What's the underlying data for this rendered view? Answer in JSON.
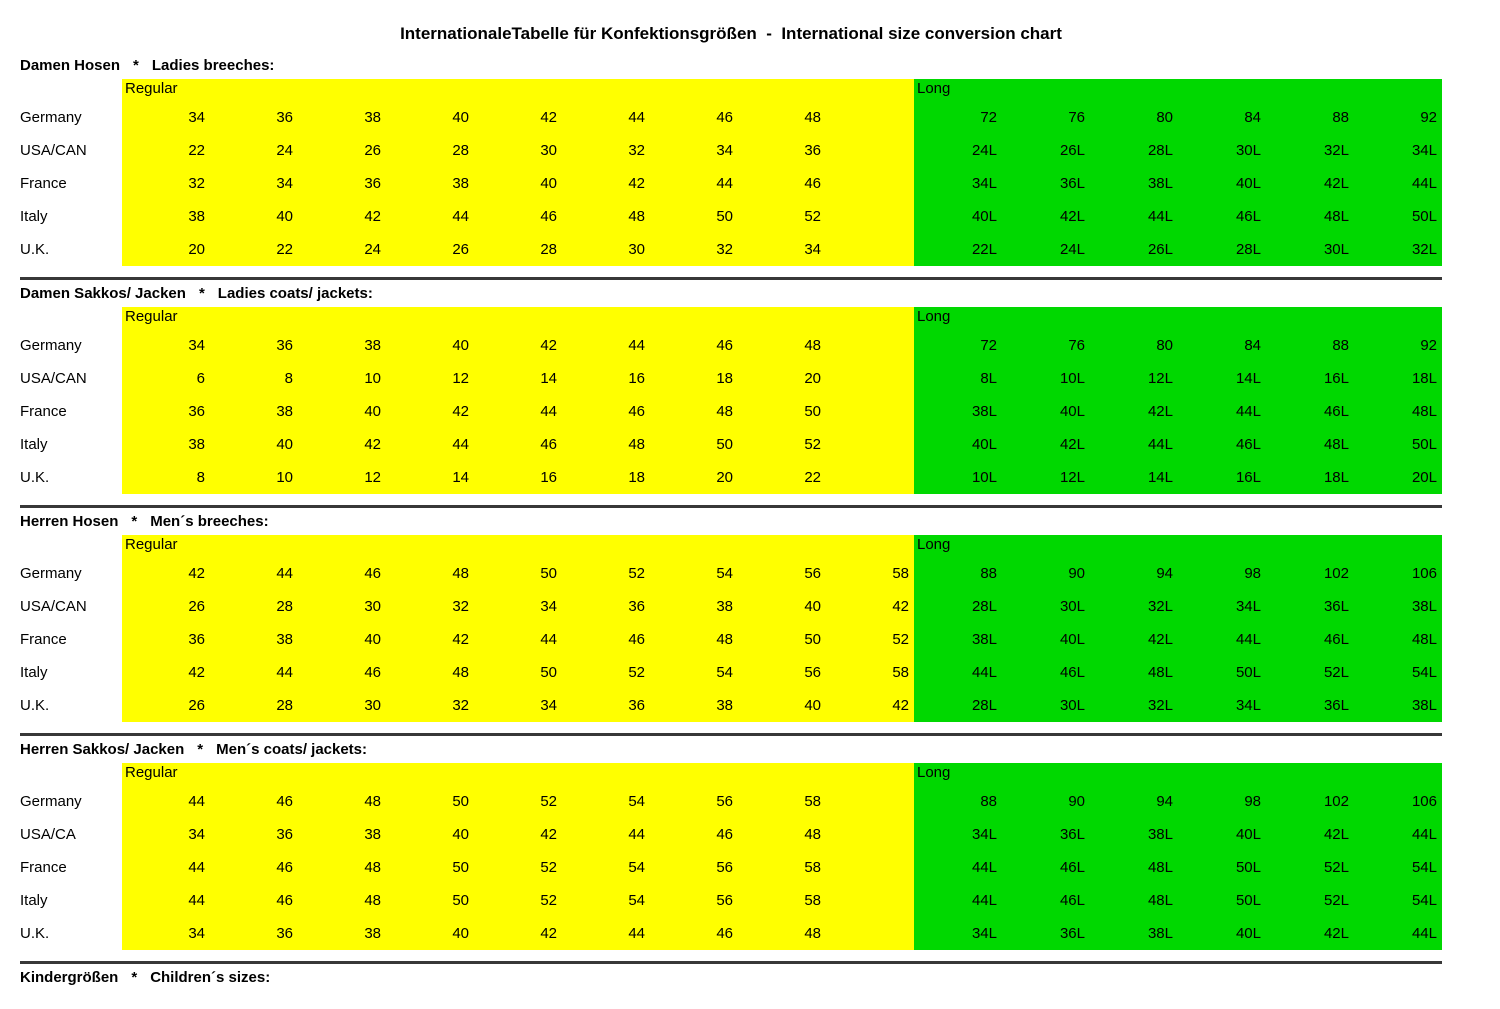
{
  "title": "InternationaleTabelle für Konfektionsgrößen  -  International size conversion chart",
  "regular_label": "Regular",
  "long_label": "Long",
  "heading_separator": "*",
  "colors": {
    "regular_bg": "#ffff00",
    "long_bg": "#00d800",
    "divider": "#383838"
  },
  "sections": [
    {
      "heading_de": "Damen Hosen",
      "heading_en": "Ladies breeches:",
      "rows": [
        {
          "label": "Germany",
          "regular": [
            "34",
            "36",
            "38",
            "40",
            "42",
            "44",
            "46",
            "48"
          ],
          "long": [
            "72",
            "76",
            "80",
            "84",
            "88",
            "92"
          ]
        },
        {
          "label": "USA/CAN",
          "regular": [
            "22",
            "24",
            "26",
            "28",
            "30",
            "32",
            "34",
            "36"
          ],
          "long": [
            "24L",
            "26L",
            "28L",
            "30L",
            "32L",
            "34L"
          ]
        },
        {
          "label": "France",
          "regular": [
            "32",
            "34",
            "36",
            "38",
            "40",
            "42",
            "44",
            "46"
          ],
          "long": [
            "34L",
            "36L",
            "38L",
            "40L",
            "42L",
            "44L"
          ]
        },
        {
          "label": "Italy",
          "regular": [
            "38",
            "40",
            "42",
            "44",
            "46",
            "48",
            "50",
            "52"
          ],
          "long": [
            "40L",
            "42L",
            "44L",
            "46L",
            "48L",
            "50L"
          ]
        },
        {
          "label": "U.K.",
          "regular": [
            "20",
            "22",
            "24",
            "26",
            "28",
            "30",
            "32",
            "34"
          ],
          "long": [
            "22L",
            "24L",
            "26L",
            "28L",
            "30L",
            "32L"
          ]
        }
      ]
    },
    {
      "heading_de": "Damen Sakkos/ Jacken",
      "heading_en": "Ladies coats/ jackets:",
      "rows": [
        {
          "label": "Germany",
          "regular": [
            "34",
            "36",
            "38",
            "40",
            "42",
            "44",
            "46",
            "48"
          ],
          "long": [
            "72",
            "76",
            "80",
            "84",
            "88",
            "92"
          ]
        },
        {
          "label": "USA/CAN",
          "regular": [
            "6",
            "8",
            "10",
            "12",
            "14",
            "16",
            "18",
            "20"
          ],
          "long": [
            "8L",
            "10L",
            "12L",
            "14L",
            "16L",
            "18L"
          ]
        },
        {
          "label": "France",
          "regular": [
            "36",
            "38",
            "40",
            "42",
            "44",
            "46",
            "48",
            "50"
          ],
          "long": [
            "38L",
            "40L",
            "42L",
            "44L",
            "46L",
            "48L"
          ]
        },
        {
          "label": "Italy",
          "regular": [
            "38",
            "40",
            "42",
            "44",
            "46",
            "48",
            "50",
            "52"
          ],
          "long": [
            "40L",
            "42L",
            "44L",
            "46L",
            "48L",
            "50L"
          ]
        },
        {
          "label": "U.K.",
          "regular": [
            "8",
            "10",
            "12",
            "14",
            "16",
            "18",
            "20",
            "22"
          ],
          "long": [
            "10L",
            "12L",
            "14L",
            "16L",
            "18L",
            "20L"
          ]
        }
      ]
    },
    {
      "heading_de": "Herren Hosen",
      "heading_en": "Men´s breeches:",
      "rows": [
        {
          "label": "Germany",
          "regular": [
            "42",
            "44",
            "46",
            "48",
            "50",
            "52",
            "54",
            "56",
            "58"
          ],
          "long": [
            "88",
            "90",
            "94",
            "98",
            "102",
            "106"
          ]
        },
        {
          "label": "USA/CAN",
          "regular": [
            "26",
            "28",
            "30",
            "32",
            "34",
            "36",
            "38",
            "40",
            "42"
          ],
          "long": [
            "28L",
            "30L",
            "32L",
            "34L",
            "36L",
            "38L"
          ]
        },
        {
          "label": "France",
          "regular": [
            "36",
            "38",
            "40",
            "42",
            "44",
            "46",
            "48",
            "50",
            "52"
          ],
          "long": [
            "38L",
            "40L",
            "42L",
            "44L",
            "46L",
            "48L"
          ]
        },
        {
          "label": "Italy",
          "regular": [
            "42",
            "44",
            "46",
            "48",
            "50",
            "52",
            "54",
            "56",
            "58"
          ],
          "long": [
            "44L",
            "46L",
            "48L",
            "50L",
            "52L",
            "54L"
          ]
        },
        {
          "label": "U.K.",
          "regular": [
            "26",
            "28",
            "30",
            "32",
            "34",
            "36",
            "38",
            "40",
            "42"
          ],
          "long": [
            "28L",
            "30L",
            "32L",
            "34L",
            "36L",
            "38L"
          ]
        }
      ]
    },
    {
      "heading_de": "Herren Sakkos/ Jacken",
      "heading_en": "Men´s coats/ jackets:",
      "rows": [
        {
          "label": "Germany",
          "regular": [
            "44",
            "46",
            "48",
            "50",
            "52",
            "54",
            "56",
            "58"
          ],
          "long": [
            "88",
            "90",
            "94",
            "98",
            "102",
            "106"
          ]
        },
        {
          "label": "USA/CA",
          "regular": [
            "34",
            "36",
            "38",
            "40",
            "42",
            "44",
            "46",
            "48"
          ],
          "long": [
            "34L",
            "36L",
            "38L",
            "40L",
            "42L",
            "44L"
          ]
        },
        {
          "label": "France",
          "regular": [
            "44",
            "46",
            "48",
            "50",
            "52",
            "54",
            "56",
            "58"
          ],
          "long": [
            "44L",
            "46L",
            "48L",
            "50L",
            "52L",
            "54L"
          ]
        },
        {
          "label": "Italy",
          "regular": [
            "44",
            "46",
            "48",
            "50",
            "52",
            "54",
            "56",
            "58"
          ],
          "long": [
            "44L",
            "46L",
            "48L",
            "50L",
            "52L",
            "54L"
          ]
        },
        {
          "label": "U.K.",
          "regular": [
            "34",
            "36",
            "38",
            "40",
            "42",
            "44",
            "46",
            "48"
          ],
          "long": [
            "34L",
            "36L",
            "38L",
            "40L",
            "42L",
            "44L"
          ]
        }
      ]
    },
    {
      "heading_de": "Kindergrößen",
      "heading_en": "Children´s sizes:",
      "rows": []
    }
  ]
}
